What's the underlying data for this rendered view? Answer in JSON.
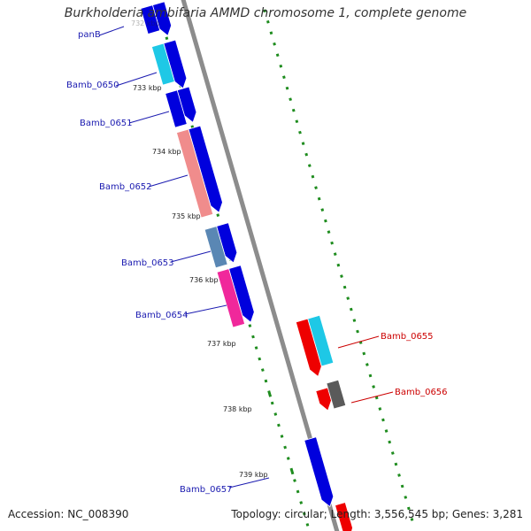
{
  "title": "Burkholderia ambifaria AMMD chromosome 1, complete genome",
  "accession": "Accession: NC_008390",
  "stats": "Topology: circular; Length: 3,556,545 bp; Genes: 3,281",
  "ticks": [
    "732 kbp",
    "733 kbp",
    "734 kbp",
    "735 kbp",
    "736 kbp",
    "737 kbp",
    "738 kbp",
    "739 kbp"
  ],
  "gene_labels": [
    {
      "text": "panB",
      "color": "#1a1ab0"
    },
    {
      "text": "Bamb_0650",
      "color": "#1a1ab0"
    },
    {
      "text": "Bamb_0651",
      "color": "#1a1ab0"
    },
    {
      "text": "Bamb_0652",
      "color": "#1a1ab0"
    },
    {
      "text": "Bamb_0653",
      "color": "#1a1ab0"
    },
    {
      "text": "Bamb_0654",
      "color": "#1a1ab0"
    },
    {
      "text": "Bamb_0655",
      "color": "#cc0000"
    },
    {
      "text": "Bamb_0656",
      "color": "#cc0000"
    },
    {
      "text": "Bamb_0657",
      "color": "#1a1ab0"
    }
  ],
  "colors": {
    "backbone": "#8c8c8c",
    "gc_dash": "#1e8c1e",
    "strand_plus": "#0000dd",
    "strand_minus": "#ee0000",
    "cog_cyan": "#1ec8e6",
    "cog_salmon": "#f08c8c",
    "cog_steel": "#5a87b4",
    "cog_pink": "#f0289b",
    "cog_gray": "#5a5a5a"
  }
}
